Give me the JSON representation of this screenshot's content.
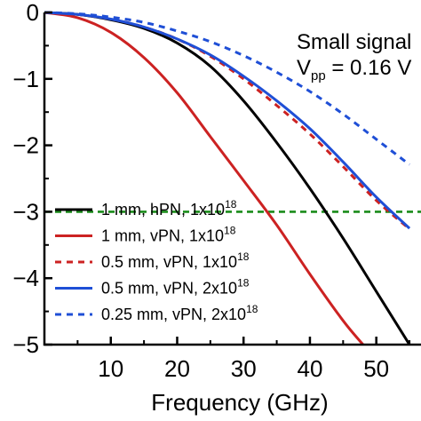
{
  "chart_data": {
    "type": "line",
    "xlabel": "Frequency (GHz)",
    "ylabel": "",
    "xlim": [
      0,
      57
    ],
    "ylim": [
      -5,
      0
    ],
    "xticks": [
      10,
      20,
      30,
      40,
      50
    ],
    "yticks": [
      0,
      -1,
      -2,
      -3,
      -4,
      -5
    ],
    "xtick_labels": [
      "10",
      "20",
      "30",
      "40",
      "50"
    ],
    "ytick_labels": [
      "0",
      "−1",
      "−2",
      "−3",
      "−4",
      "−5"
    ],
    "grid": false,
    "reference_line": {
      "y": -3,
      "color": "#1a8c1a",
      "style": "dashed"
    },
    "annotation": {
      "line1": "Small signal",
      "line2_main": "V",
      "line2_sub": "pp",
      "line2_rest": " = 0.16 V"
    },
    "legend_position": "lower-left",
    "series": [
      {
        "name_main": "1 mm, hPN, 1x10",
        "name_sup": "18",
        "color": "#000000",
        "style": "solid",
        "x": [
          0,
          5,
          10,
          15,
          20,
          25,
          30,
          35,
          40,
          45,
          50,
          55
        ],
        "y": [
          0,
          -0.03,
          -0.11,
          -0.24,
          -0.46,
          -0.81,
          -1.33,
          -1.96,
          -2.65,
          -3.4,
          -4.2,
          -5.0
        ]
      },
      {
        "name_main": "1 mm, vPN, 1x10",
        "name_sup": "18",
        "color": "#cc2222",
        "style": "solid",
        "x": [
          0,
          5,
          10,
          15,
          20,
          25,
          30,
          35,
          40,
          45,
          48
        ],
        "y": [
          0,
          -0.08,
          -0.3,
          -0.68,
          -1.21,
          -1.87,
          -2.53,
          -3.2,
          -3.94,
          -4.64,
          -5.0
        ]
      },
      {
        "name_main": "0.5 mm, vPN, 1x10",
        "name_sup": "18",
        "color": "#cc2222",
        "style": "dashed",
        "x": [
          0,
          5,
          10,
          15,
          20,
          25,
          30,
          35,
          40,
          45,
          50,
          55
        ],
        "y": [
          0,
          -0.03,
          -0.1,
          -0.22,
          -0.4,
          -0.66,
          -1.0,
          -1.4,
          -1.83,
          -2.32,
          -2.83,
          -3.26
        ]
      },
      {
        "name_main": "0.5 mm, vPN, 2x10",
        "name_sup": "18",
        "color": "#1f4fd6",
        "style": "solid",
        "x": [
          0,
          5,
          10,
          15,
          20,
          25,
          30,
          35,
          40,
          45,
          50,
          55
        ],
        "y": [
          0,
          -0.03,
          -0.1,
          -0.22,
          -0.4,
          -0.64,
          -0.96,
          -1.33,
          -1.75,
          -2.25,
          -2.78,
          -3.25
        ]
      },
      {
        "name_main": "0.25 mm, vPN, 2x10",
        "name_sup": "18",
        "color": "#1f4fd6",
        "style": "dashed",
        "x": [
          0,
          5,
          10,
          15,
          20,
          25,
          30,
          35,
          40,
          45,
          50,
          55
        ],
        "y": [
          0,
          -0.02,
          -0.07,
          -0.15,
          -0.28,
          -0.44,
          -0.65,
          -0.9,
          -1.19,
          -1.53,
          -1.91,
          -2.29
        ]
      }
    ]
  }
}
